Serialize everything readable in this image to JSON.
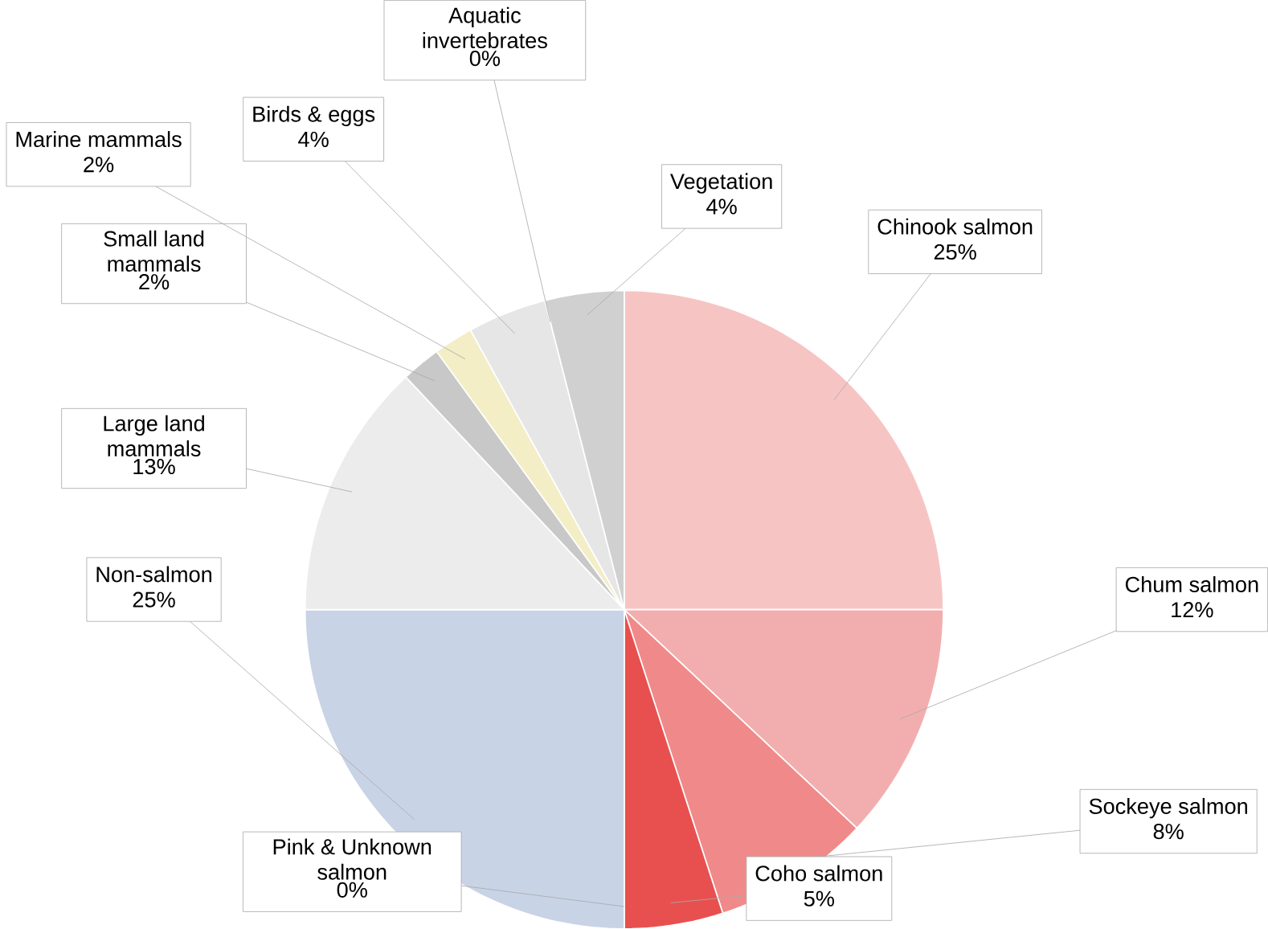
{
  "chart_data": {
    "type": "pie",
    "categories": [
      "Chinook salmon",
      "Chum salmon",
      "Sockeye salmon",
      "Coho salmon",
      "Pink & Unknown salmon",
      "Non-salmon",
      "Large land mammals",
      "Small land mammals",
      "Marine mammals",
      "Birds & eggs",
      "Aquatic invertebrates",
      "Vegetation"
    ],
    "values": [
      25,
      12,
      8,
      5,
      0,
      25,
      13,
      2,
      2,
      4,
      0,
      4
    ],
    "value_labels": [
      "25%",
      "12%",
      "8%",
      "5%",
      "0%",
      "25%",
      "13%",
      "2%",
      "2%",
      "4%",
      "0%",
      "4%"
    ],
    "colors": [
      "#f7c4c4",
      "#f2aeae",
      "#f08a8a",
      "#e85050",
      "#ff0000",
      "#c9d3e6",
      "#ececec",
      "#c8c8c8",
      "#f3eec6",
      "#e6e6e6",
      "#b8b8b8",
      "#d0d0d0"
    ]
  }
}
